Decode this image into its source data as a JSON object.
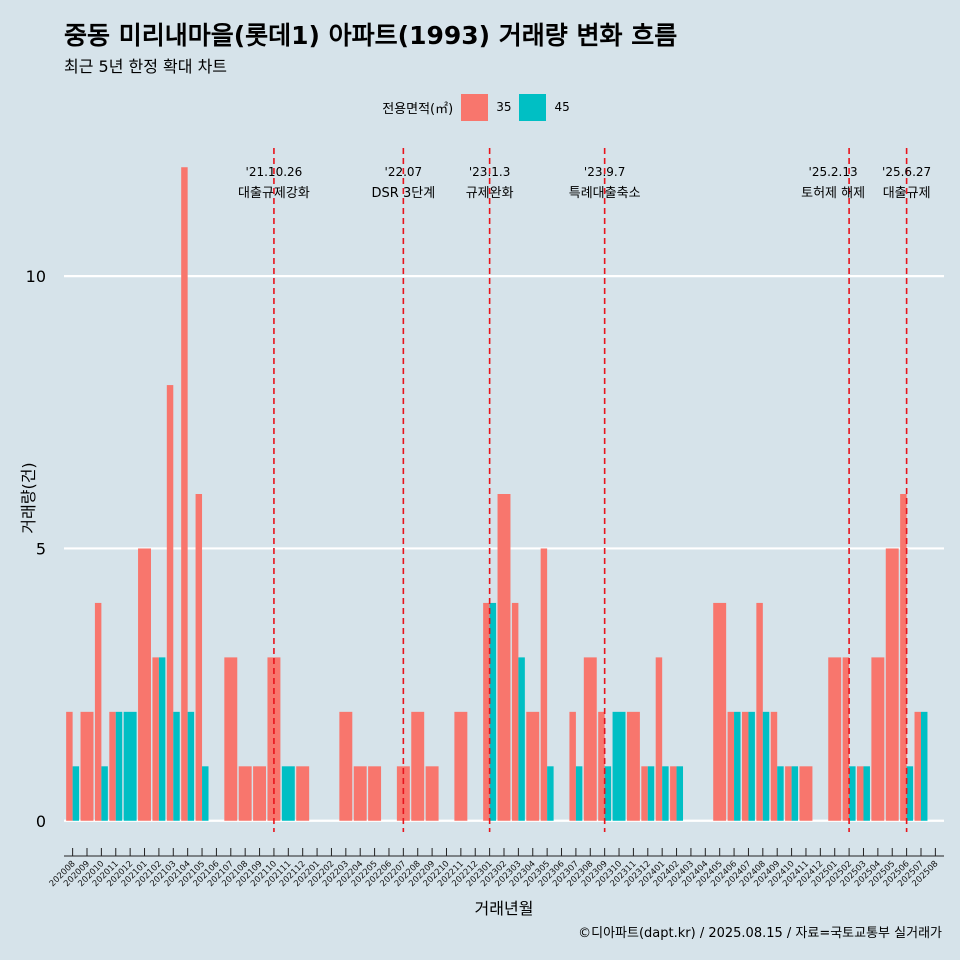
{
  "title": "중동 미리내마을(롯데1) 아파트(1993) 거래량 변화 흐름",
  "subtitle": "최근 5년 한정 확대 차트",
  "caption": "©디아파트(dapt.kr) / 2025.08.15 / 자료=국토교통부 실거래가",
  "colors": {
    "s35": "#f8766d",
    "s45": "#00bfc4",
    "background": "#d6e3ea",
    "event_line": "#e8141c"
  },
  "chart_data": {
    "type": "bar",
    "title": "중동 미리내마을(롯데1) 아파트(1993) 거래량 변화 흐름",
    "subtitle": "최근 5년 한정 확대 차트",
    "xlabel": "거래년월",
    "ylabel": "거래량(건)",
    "ylim": [
      -0.5,
      12.5
    ],
    "yticks": [
      0,
      5,
      10
    ],
    "grid": "horizontal",
    "legend": {
      "title": "전용면적(㎡)",
      "position": "top"
    },
    "categories": [
      "202008",
      "202009",
      "202010",
      "202011",
      "202012",
      "202101",
      "202102",
      "202103",
      "202104",
      "202105",
      "202106",
      "202107",
      "202108",
      "202109",
      "202110",
      "202111",
      "202112",
      "202201",
      "202202",
      "202203",
      "202204",
      "202205",
      "202206",
      "202207",
      "202208",
      "202209",
      "202210",
      "202211",
      "202212",
      "202301",
      "202302",
      "202303",
      "202304",
      "202305",
      "202306",
      "202307",
      "202308",
      "202309",
      "202310",
      "202311",
      "202312",
      "202401",
      "202402",
      "202403",
      "202404",
      "202405",
      "202406",
      "202407",
      "202408",
      "202409",
      "202410",
      "202411",
      "202412",
      "202501",
      "202502",
      "202503",
      "202504",
      "202505",
      "202506",
      "202507",
      "202508"
    ],
    "series": [
      {
        "name": "35",
        "values": [
          2,
          2,
          4,
          2,
          0,
          5,
          3,
          8,
          12,
          6,
          0,
          3,
          1,
          1,
          3,
          0,
          1,
          0,
          0,
          2,
          1,
          1,
          0,
          1,
          2,
          1,
          0,
          2,
          0,
          4,
          6,
          4,
          2,
          5,
          0,
          2,
          3,
          2,
          0,
          2,
          1,
          3,
          1,
          0,
          0,
          4,
          2,
          2,
          4,
          2,
          1,
          1,
          0,
          3,
          3,
          1,
          3,
          5,
          6,
          2,
          0
        ]
      },
      {
        "name": "45",
        "values": [
          1,
          0,
          1,
          2,
          2,
          0,
          3,
          2,
          2,
          1,
          0,
          0,
          0,
          0,
          0,
          1,
          0,
          0,
          0,
          0,
          0,
          0,
          0,
          0,
          0,
          0,
          0,
          0,
          0,
          4,
          0,
          3,
          0,
          1,
          0,
          1,
          0,
          1,
          2,
          0,
          1,
          1,
          1,
          0,
          0,
          0,
          2,
          2,
          2,
          1,
          1,
          0,
          0,
          0,
          1,
          1,
          0,
          0,
          1,
          2,
          0
        ]
      }
    ],
    "events": [
      {
        "date": "'21.10.26",
        "label": "대출규제강화",
        "category": "202110"
      },
      {
        "date": "'22.07",
        "label": "DSR 3단계",
        "category": "202207"
      },
      {
        "date": "'23.1.3",
        "label": "규제완화",
        "category": "202301"
      },
      {
        "date": "'23.9.7",
        "label": "특례대출축소",
        "category": "202309"
      },
      {
        "date": "'25.2.13",
        "label": "토허제 해제",
        "category": "202502"
      },
      {
        "date": "'25.6.27",
        "label": "대출규제",
        "category": "202506"
      }
    ]
  }
}
